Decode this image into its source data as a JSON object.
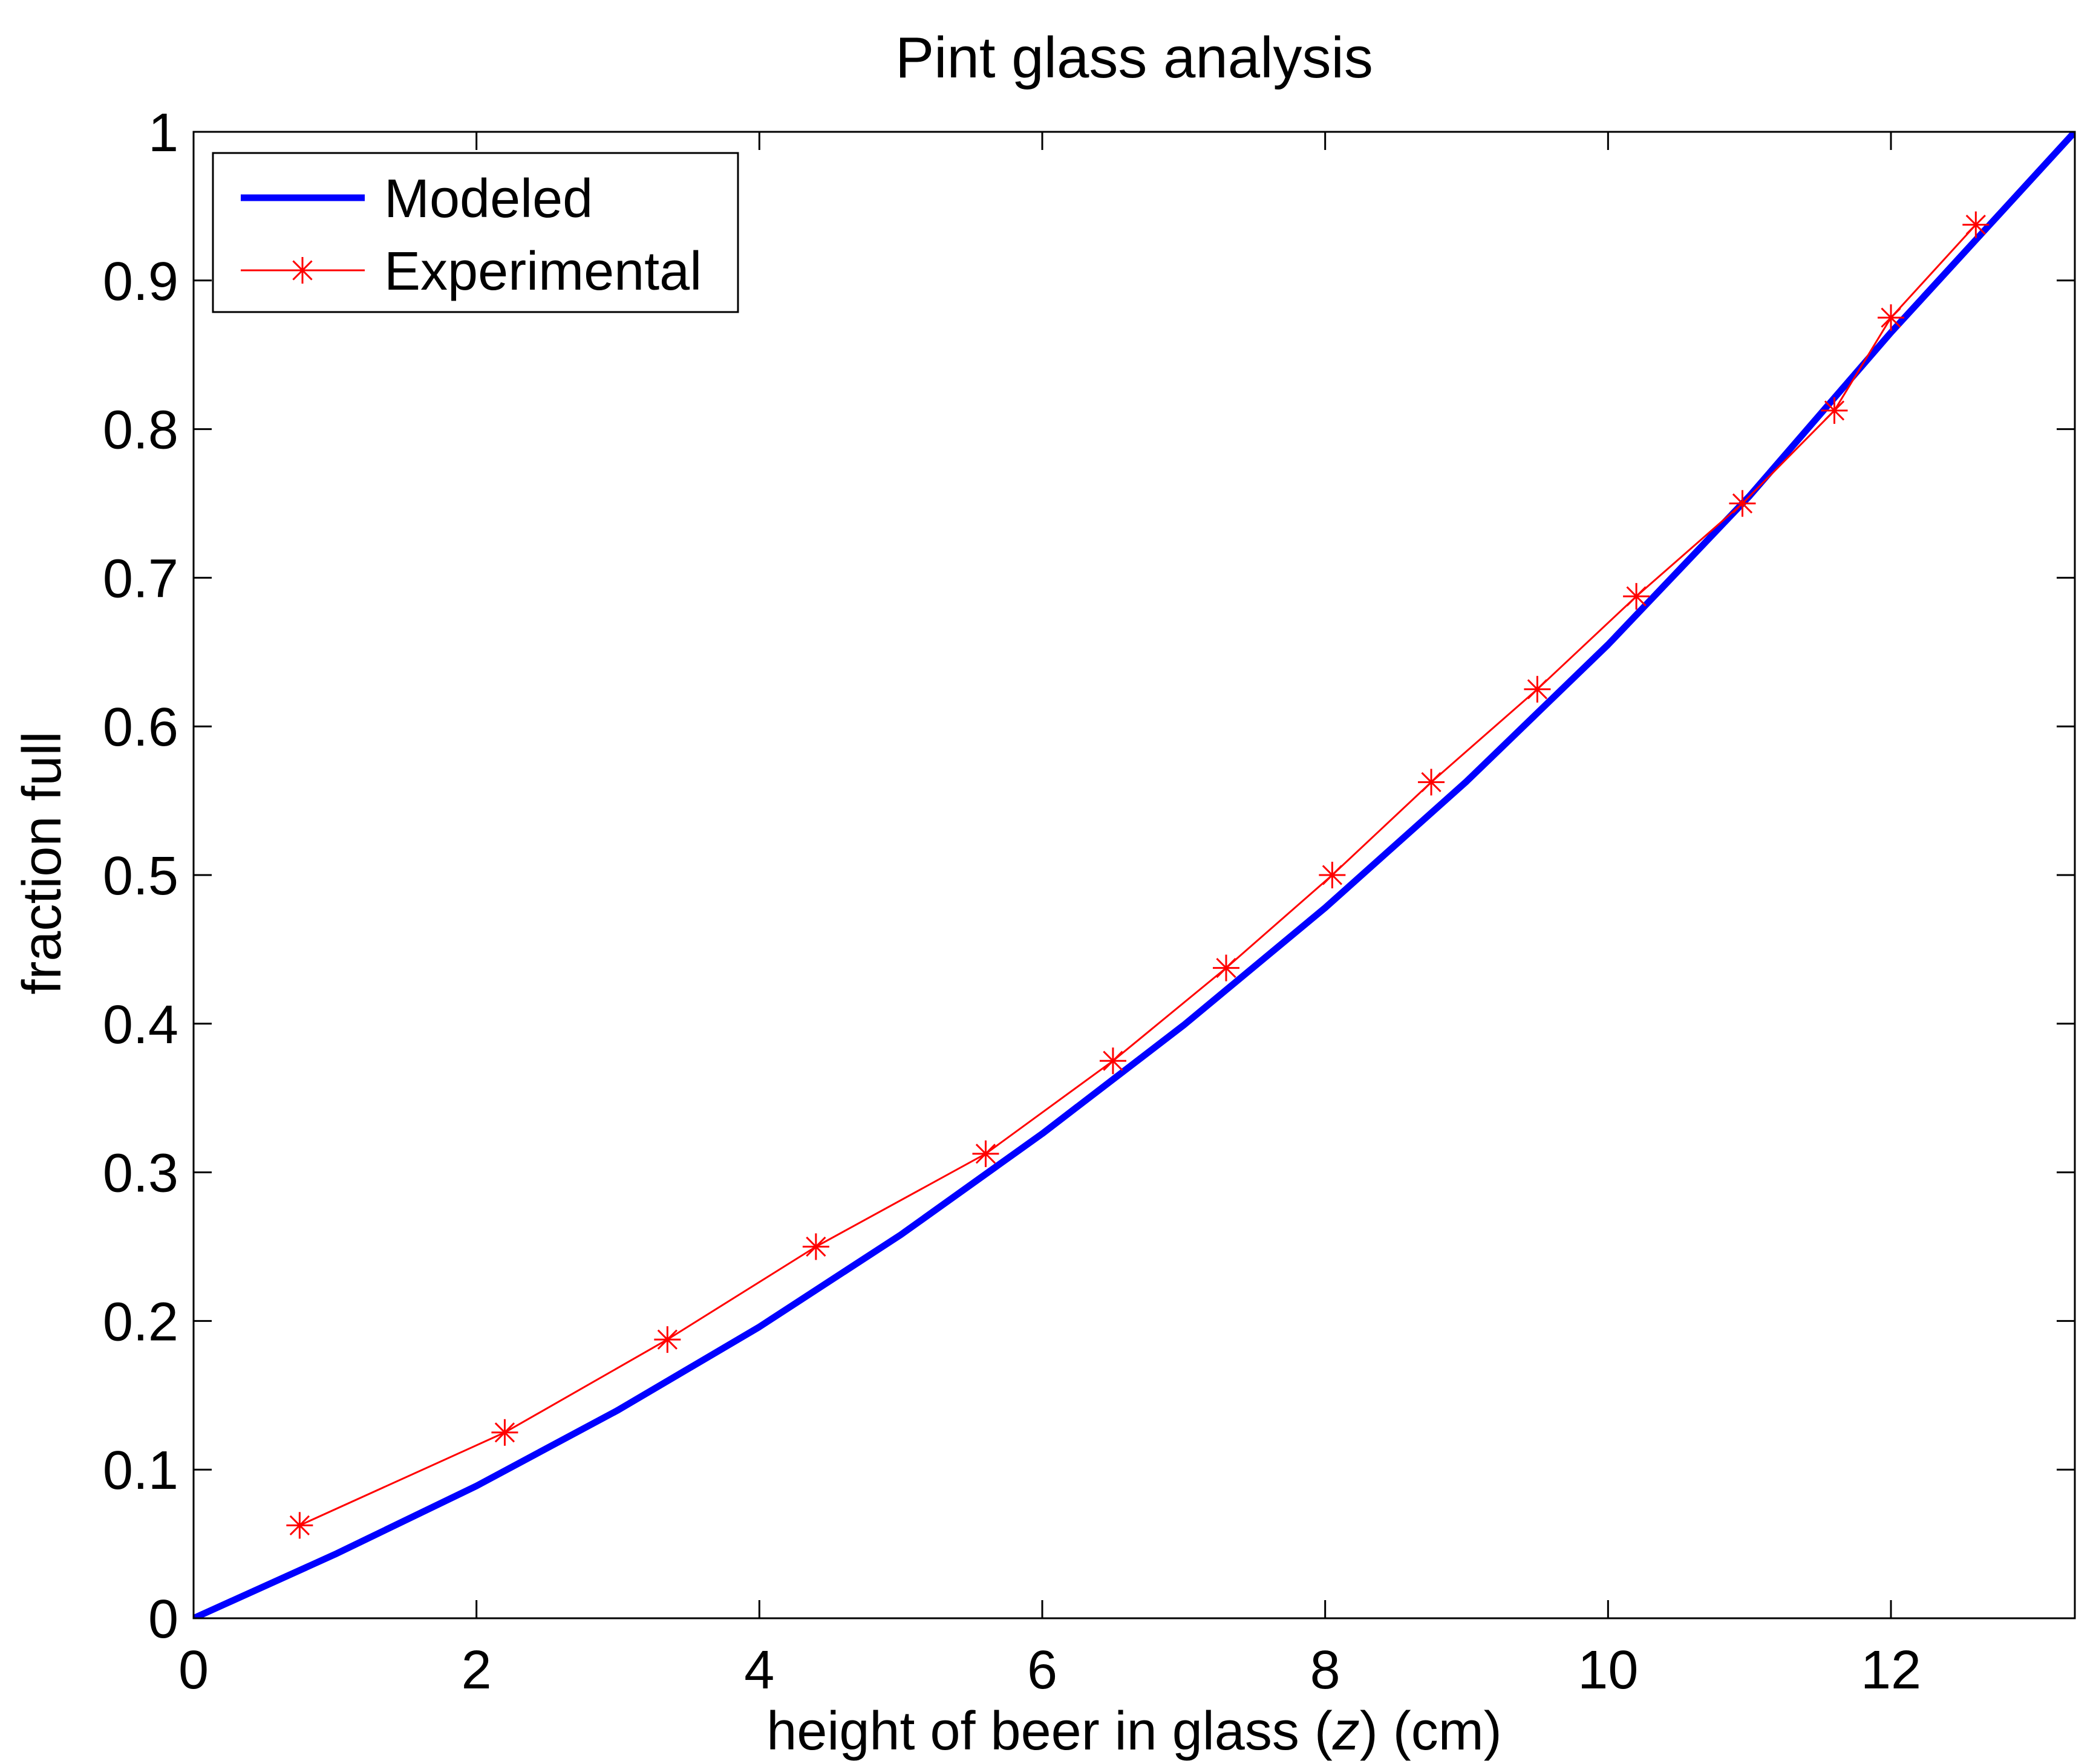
{
  "chart_data": {
    "type": "line",
    "title": "Pint glass analysis",
    "xlabel": {
      "prefix": "height of beer in glass (",
      "variable": "z",
      "suffix": ") (cm)"
    },
    "ylabel": "fraction full",
    "xlim": [
      0,
      13.3
    ],
    "ylim": [
      0,
      1
    ],
    "xticks": [
      0,
      2,
      4,
      6,
      8,
      10,
      12
    ],
    "xtick_labels": [
      "0",
      "2",
      "4",
      "6",
      "8",
      "10",
      "12"
    ],
    "yticks": [
      0,
      0.1,
      0.2,
      0.3,
      0.4,
      0.5,
      0.6,
      0.7,
      0.8,
      0.9,
      1
    ],
    "ytick_labels": [
      "0",
      "0.1",
      "0.2",
      "0.3",
      "0.4",
      "0.5",
      "0.6",
      "0.7",
      "0.8",
      "0.9",
      "1"
    ],
    "grid": false,
    "legend_position": "top-left",
    "series": [
      {
        "name": "Modeled",
        "color": "#0000ff",
        "style": "thick-solid-line",
        "x": [
          0,
          1,
          2,
          3,
          4,
          5,
          6,
          7,
          8,
          9,
          10,
          11,
          12,
          13.3
        ],
        "y": [
          0,
          0.043,
          0.089,
          0.14,
          0.196,
          0.258,
          0.326,
          0.399,
          0.478,
          0.563,
          0.655,
          0.755,
          0.865,
          1.0
        ]
      },
      {
        "name": "Experimental",
        "color": "#ff0000",
        "style": "thin-line-with-asterisk-markers",
        "x": [
          0.75,
          2.2,
          3.35,
          4.4,
          5.6,
          6.5,
          7.3,
          8.05,
          8.75,
          9.5,
          10.2,
          10.95,
          11.6,
          12.0,
          12.6
        ],
        "y": [
          0.0625,
          0.125,
          0.1875,
          0.25,
          0.3125,
          0.375,
          0.4375,
          0.5,
          0.5625,
          0.625,
          0.6875,
          0.75,
          0.8125,
          0.875,
          0.9375
        ]
      }
    ]
  }
}
